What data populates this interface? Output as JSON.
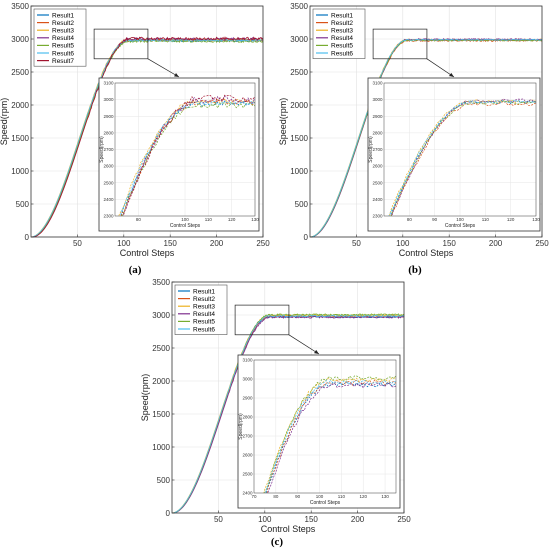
{
  "chart_data": [
    {
      "type": "line",
      "panel_label": "(a)",
      "xlabel": "Control Steps",
      "ylabel": "Speed(rpm)",
      "xlim": [
        0,
        250
      ],
      "ylim": [
        0,
        3500
      ],
      "x_ticks": [
        50,
        100,
        150,
        200,
        250
      ],
      "y_ticks": [
        0,
        500,
        1000,
        1500,
        2000,
        2500,
        3000,
        3500
      ],
      "grid": true,
      "legend_position": "top-left",
      "series": [
        {
          "name": "Result1",
          "color": "#0072BD",
          "final": 2975,
          "ripple": 15,
          "delay": 0
        },
        {
          "name": "Result2",
          "color": "#D95319",
          "final": 2985,
          "ripple": 18,
          "delay": 0.5
        },
        {
          "name": "Result3",
          "color": "#EDB120",
          "final": 2990,
          "ripple": 14,
          "delay": -0.5
        },
        {
          "name": "Result4",
          "color": "#7E2F8E",
          "final": 3000,
          "ripple": 20,
          "delay": 1
        },
        {
          "name": "Result5",
          "color": "#77AC30",
          "final": 2965,
          "ripple": 16,
          "delay": 0.3
        },
        {
          "name": "Result6",
          "color": "#4DBEEE",
          "final": 2980,
          "ripple": 12,
          "delay": -0.3
        },
        {
          "name": "Result7",
          "color": "#A2142F",
          "final": 3005,
          "ripple": 22,
          "delay": 1.5
        }
      ],
      "inset": {
        "xlim": [
          70,
          130
        ],
        "ylim": [
          2300,
          3100
        ],
        "x_ticks": [
          80,
          100,
          110,
          120,
          130
        ],
        "y_ticks": [
          2300,
          2400,
          2500,
          2600,
          2700,
          2800,
          2900,
          3000,
          3100
        ],
        "xlabel": "Control Steps",
        "ylabel": "Speed(rpm)"
      },
      "zoom_box": {
        "x": [
          68,
          126
        ],
        "y": [
          2700,
          3150
        ]
      }
    },
    {
      "type": "line",
      "panel_label": "(b)",
      "xlabel": "Control Steps",
      "ylabel": "Speed(rpm)",
      "xlim": [
        0,
        250
      ],
      "ylim": [
        0,
        3500
      ],
      "x_ticks": [
        50,
        100,
        150,
        200,
        250
      ],
      "y_ticks": [
        0,
        500,
        1000,
        1500,
        2000,
        2500,
        3000,
        3500
      ],
      "grid": true,
      "legend_position": "top-left",
      "series": [
        {
          "name": "Result1",
          "color": "#0072BD",
          "final": 2985,
          "ripple": 10,
          "delay": 0
        },
        {
          "name": "Result2",
          "color": "#D95319",
          "final": 2975,
          "ripple": 12,
          "delay": 0.4
        },
        {
          "name": "Result3",
          "color": "#EDB120",
          "final": 2990,
          "ripple": 9,
          "delay": -0.4
        },
        {
          "name": "Result4",
          "color": "#7E2F8E",
          "final": 2995,
          "ripple": 11,
          "delay": 0.8
        },
        {
          "name": "Result5",
          "color": "#77AC30",
          "final": 2980,
          "ripple": 10,
          "delay": 0.2
        },
        {
          "name": "Result6",
          "color": "#4DBEEE",
          "final": 2988,
          "ripple": 8,
          "delay": -0.2
        }
      ],
      "inset": {
        "xlim": [
          70,
          130
        ],
        "ylim": [
          2300,
          3100
        ],
        "x_ticks": [
          80,
          90,
          100,
          110,
          120,
          130
        ],
        "y_ticks": [
          2300,
          2400,
          2500,
          2600,
          2700,
          2800,
          2900,
          3000,
          3100
        ],
        "xlabel": "Control Steps",
        "ylabel": "Speed(rpm)"
      },
      "zoom_box": {
        "x": [
          68,
          126
        ],
        "y": [
          2700,
          3150
        ]
      }
    },
    {
      "type": "line",
      "panel_label": "(c)",
      "xlabel": "Control Steps",
      "ylabel": "Speed(rpm)",
      "xlim": [
        0,
        250
      ],
      "ylim": [
        0,
        3500
      ],
      "x_ticks": [
        50,
        100,
        150,
        200,
        250
      ],
      "y_ticks": [
        0,
        500,
        1000,
        1500,
        2000,
        2500,
        3000,
        3500
      ],
      "grid": true,
      "legend_position": "top-left",
      "series": [
        {
          "name": "Result1",
          "color": "#0072BD",
          "final": 2970,
          "ripple": 12,
          "delay": 0
        },
        {
          "name": "Result2",
          "color": "#D95319",
          "final": 2980,
          "ripple": 14,
          "delay": 0.4
        },
        {
          "name": "Result3",
          "color": "#EDB120",
          "final": 2995,
          "ripple": 11,
          "delay": -0.4
        },
        {
          "name": "Result4",
          "color": "#7E2F8E",
          "final": 2965,
          "ripple": 13,
          "delay": 0.8
        },
        {
          "name": "Result5",
          "color": "#77AC30",
          "final": 3005,
          "ripple": 12,
          "delay": 0.2
        },
        {
          "name": "Result6",
          "color": "#4DBEEE",
          "final": 2985,
          "ripple": 10,
          "delay": -0.2
        }
      ],
      "inset": {
        "xlim": [
          70,
          135
        ],
        "ylim": [
          2400,
          3100
        ],
        "x_ticks": [
          70,
          80,
          90,
          100,
          110,
          120,
          130
        ],
        "y_ticks": [
          2400,
          2500,
          2600,
          2700,
          2800,
          2900,
          3000,
          3100
        ],
        "xlabel": "Control Steps",
        "ylabel": "Speed(rpm)"
      },
      "zoom_box": {
        "x": [
          68,
          126
        ],
        "y": [
          2700,
          3150
        ]
      }
    }
  ]
}
